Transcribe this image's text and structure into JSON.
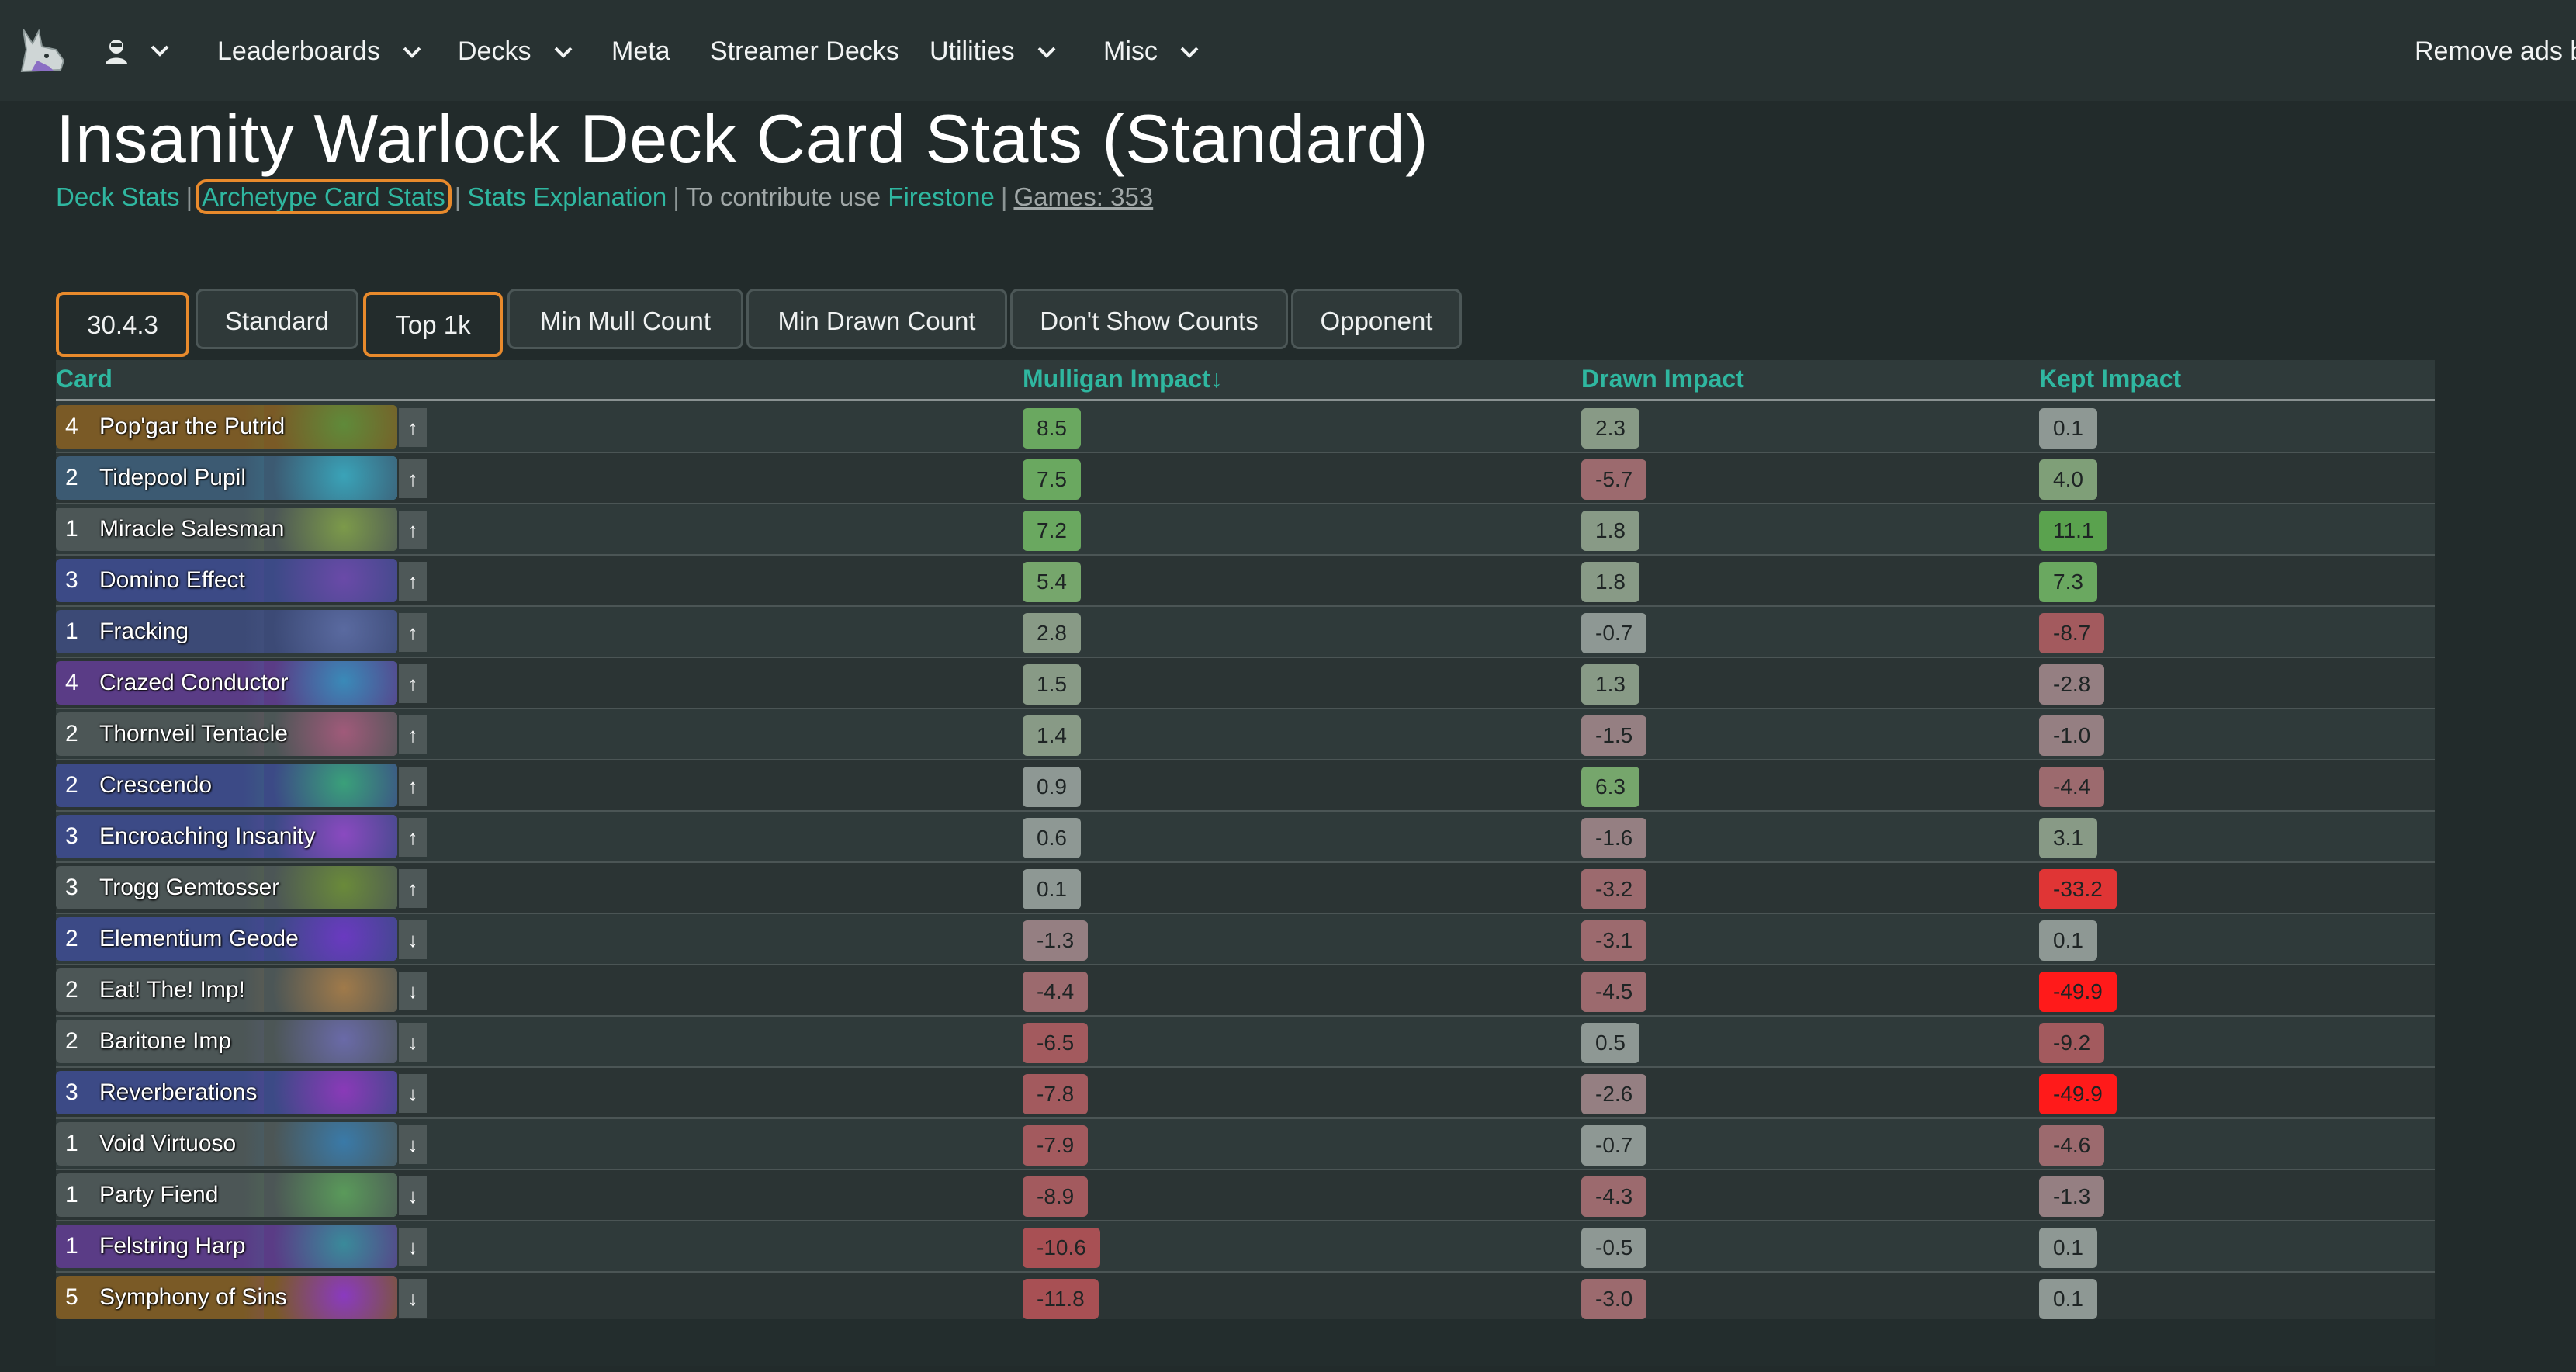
{
  "nav": {
    "items": [
      {
        "label": "Leaderboards",
        "caret": true
      },
      {
        "label": "Decks",
        "caret": true
      },
      {
        "label": "Meta",
        "caret": false
      },
      {
        "label": "Streamer Decks",
        "caret": false
      },
      {
        "label": "Utilities",
        "caret": true
      },
      {
        "label": "Misc",
        "caret": true
      }
    ],
    "remove_ads": "Remove ads by"
  },
  "header": {
    "title": "Insanity Warlock Deck Card Stats (Standard)",
    "links": {
      "deck_stats": "Deck Stats",
      "archetype_card_stats": "Archetype Card Stats",
      "stats_explanation": "Stats Explanation",
      "contribute_text": "To contribute use",
      "firestone": "Firestone",
      "games": "Games: 353"
    },
    "separator": "|"
  },
  "filters": [
    {
      "label": "30.4.3",
      "active": true
    },
    {
      "label": "Standard",
      "active": false
    },
    {
      "label": "Top 1k",
      "active": true
    },
    {
      "label": "Min Mull Count",
      "active": false
    },
    {
      "label": "Min Drawn Count",
      "active": false
    },
    {
      "label": "Don't Show Counts",
      "active": false
    },
    {
      "label": "Opponent",
      "active": false
    }
  ],
  "table": {
    "columns": {
      "card": "Card",
      "mulligan": "Mulligan Impact↓",
      "drawn": "Drawn Impact",
      "kept": "Kept Impact"
    },
    "rows": [
      {
        "cost": "4",
        "name": "Pop'gar the Putrid",
        "arrow": "↑",
        "mulligan": "8.5",
        "drawn": "2.3",
        "kept": "0.1",
        "color": "#7a5a26",
        "art": "#5f8a3a"
      },
      {
        "cost": "2",
        "name": "Tidepool Pupil",
        "arrow": "↑",
        "mulligan": "7.5",
        "drawn": "-5.7",
        "kept": "4.0",
        "color": "#3c5a72",
        "art": "#3aa3b8"
      },
      {
        "cost": "1",
        "name": "Miracle Salesman",
        "arrow": "↑",
        "mulligan": "7.2",
        "drawn": "1.8",
        "kept": "11.1",
        "color": "#4c5656",
        "art": "#7c9a4a"
      },
      {
        "cost": "3",
        "name": "Domino Effect",
        "arrow": "↑",
        "mulligan": "5.4",
        "drawn": "1.8",
        "kept": "7.3",
        "color": "#3c4a86",
        "art": "#6a4aa8"
      },
      {
        "cost": "1",
        "name": "Fracking",
        "arrow": "↑",
        "mulligan": "2.8",
        "drawn": "-0.7",
        "kept": "-8.7",
        "color": "#3c4a76",
        "art": "#5a6aa0"
      },
      {
        "cost": "4",
        "name": "Crazed Conductor",
        "arrow": "↑",
        "mulligan": "1.5",
        "drawn": "1.3",
        "kept": "-2.8",
        "color": "#5a3c86",
        "art": "#3a8ab8"
      },
      {
        "cost": "2",
        "name": "Thornveil Tentacle",
        "arrow": "↑",
        "mulligan": "1.4",
        "drawn": "-1.5",
        "kept": "-1.0",
        "color": "#4c5656",
        "art": "#a05a7a"
      },
      {
        "cost": "2",
        "name": "Crescendo",
        "arrow": "↑",
        "mulligan": "0.9",
        "drawn": "6.3",
        "kept": "-4.4",
        "color": "#3c4a86",
        "art": "#3aa07a"
      },
      {
        "cost": "3",
        "name": "Encroaching Insanity",
        "arrow": "↑",
        "mulligan": "0.6",
        "drawn": "-1.6",
        "kept": "3.1",
        "color": "#3c4a86",
        "art": "#8a4ac0"
      },
      {
        "cost": "3",
        "name": "Trogg Gemtosser",
        "arrow": "↑",
        "mulligan": "0.1",
        "drawn": "-3.2",
        "kept": "-33.2",
        "color": "#4c5656",
        "art": "#6a8a3a"
      },
      {
        "cost": "2",
        "name": "Elementium Geode",
        "arrow": "↓",
        "mulligan": "-1.3",
        "drawn": "-3.1",
        "kept": "0.1",
        "color": "#3c4a86",
        "art": "#6a3ac0"
      },
      {
        "cost": "2",
        "name": "Eat! The! Imp!",
        "arrow": "↓",
        "mulligan": "-4.4",
        "drawn": "-4.5",
        "kept": "-49.9",
        "color": "#4c5656",
        "art": "#a07a4a"
      },
      {
        "cost": "2",
        "name": "Baritone Imp",
        "arrow": "↓",
        "mulligan": "-6.5",
        "drawn": "0.5",
        "kept": "-9.2",
        "color": "#4c5656",
        "art": "#6a6aa8"
      },
      {
        "cost": "3",
        "name": "Reverberations",
        "arrow": "↓",
        "mulligan": "-7.8",
        "drawn": "-2.6",
        "kept": "-49.9",
        "color": "#3c4a86",
        "art": "#8a3ab8"
      },
      {
        "cost": "1",
        "name": "Void Virtuoso",
        "arrow": "↓",
        "mulligan": "-7.9",
        "drawn": "-0.7",
        "kept": "-4.6",
        "color": "#4c5656",
        "art": "#3a7aa8"
      },
      {
        "cost": "1",
        "name": "Party Fiend",
        "arrow": "↓",
        "mulligan": "-8.9",
        "drawn": "-4.3",
        "kept": "-1.3",
        "color": "#4c5656",
        "art": "#5a9a5a"
      },
      {
        "cost": "1",
        "name": "Felstring Harp",
        "arrow": "↓",
        "mulligan": "-10.6",
        "drawn": "-0.5",
        "kept": "0.1",
        "color": "#5a3c86",
        "art": "#3a8a9a"
      },
      {
        "cost": "5",
        "name": "Symphony of Sins",
        "arrow": "↓",
        "mulligan": "-11.8",
        "drawn": "-3.0",
        "kept": "0.1",
        "color": "#7a5a26",
        "art": "#8a3ac0"
      }
    ]
  }
}
